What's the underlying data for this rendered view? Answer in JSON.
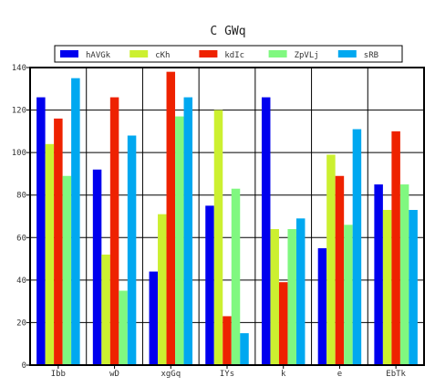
{
  "chart_data": {
    "type": "bar",
    "title": "C GWq",
    "categories": [
      "Ibb",
      "wD",
      "xgGq",
      "IYs",
      "k",
      "e",
      "EbTk"
    ],
    "series": [
      {
        "name": "hAVGk",
        "color": "#0000ee",
        "values": [
          126,
          92,
          44,
          75,
          126,
          55,
          85
        ]
      },
      {
        "name": "cKh",
        "color": "#ccf030",
        "values": [
          104,
          52,
          71,
          120,
          64,
          99,
          73
        ]
      },
      {
        "name": "kdIc",
        "color": "#ee2200",
        "values": [
          116,
          126,
          138,
          23,
          39,
          89,
          110
        ]
      },
      {
        "name": "ZpVLj",
        "color": "#80f880",
        "values": [
          89,
          35,
          117,
          83,
          64,
          66,
          85
        ]
      },
      {
        "name": "sRB",
        "color": "#00a8f0",
        "values": [
          135,
          108,
          126,
          15,
          69,
          111,
          73
        ]
      }
    ],
    "ylim": [
      0,
      140
    ],
    "yticks": [
      "0",
      "20",
      "40",
      "60",
      "80",
      "100",
      "120",
      "140"
    ],
    "grid": true,
    "legend_position": "top"
  }
}
